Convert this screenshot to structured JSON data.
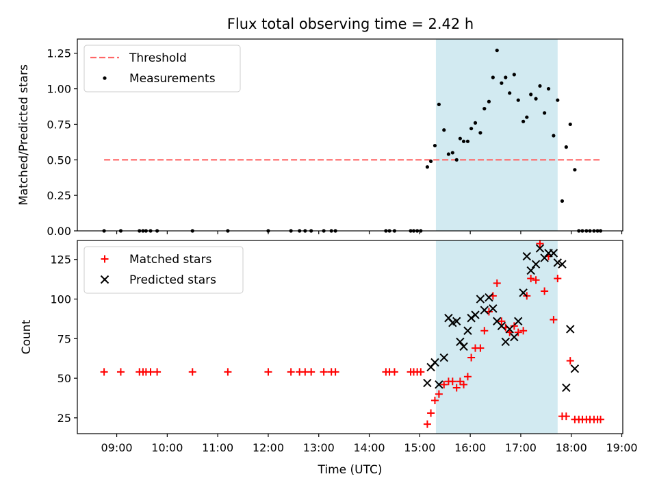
{
  "title": "Flux total observing time = 2.42 h",
  "colors": {
    "threshold": "#ff6666",
    "measurement": "#000000",
    "matched": "#ff0000",
    "predicted": "#000000",
    "highlight": "#add8e6"
  },
  "chart_data": [
    {
      "type": "scatter",
      "ylabel": "Matched/Predicted stars",
      "xlabel": "",
      "ylim": [
        0,
        1.35
      ],
      "xlim_hours": [
        8.22,
        19.02
      ],
      "yticks": [
        "0.00",
        "0.25",
        "0.50",
        "0.75",
        "1.00",
        "1.25"
      ],
      "highlight_span": {
        "start": 15.32,
        "end": 17.73
      },
      "legend": [
        "Threshold",
        "Measurements"
      ],
      "legend_position": "top-left",
      "threshold": {
        "name": "Threshold",
        "y": 0.5,
        "x": [
          8.75,
          18.6
        ]
      },
      "series": [
        {
          "name": "Measurements",
          "marker": "dot",
          "points": [
            [
              8.75,
              0
            ],
            [
              9.08,
              0
            ],
            [
              9.45,
              0
            ],
            [
              9.52,
              0
            ],
            [
              9.58,
              0
            ],
            [
              9.67,
              0
            ],
            [
              9.8,
              0
            ],
            [
              10.5,
              0
            ],
            [
              11.2,
              0
            ],
            [
              12.0,
              0
            ],
            [
              12.45,
              0
            ],
            [
              12.62,
              0
            ],
            [
              12.73,
              0
            ],
            [
              12.85,
              0
            ],
            [
              13.1,
              0
            ],
            [
              13.25,
              0
            ],
            [
              13.33,
              0
            ],
            [
              14.33,
              0
            ],
            [
              14.4,
              0
            ],
            [
              14.5,
              0
            ],
            [
              14.82,
              0
            ],
            [
              14.88,
              0
            ],
            [
              14.95,
              0
            ],
            [
              15.02,
              0
            ],
            [
              15.15,
              0.45
            ],
            [
              15.22,
              0.49
            ],
            [
              15.3,
              0.6
            ],
            [
              15.38,
              0.89
            ],
            [
              15.48,
              0.71
            ],
            [
              15.57,
              0.54
            ],
            [
              15.65,
              0.55
            ],
            [
              15.73,
              0.5
            ],
            [
              15.8,
              0.65
            ],
            [
              15.87,
              0.63
            ],
            [
              15.95,
              0.63
            ],
            [
              16.02,
              0.72
            ],
            [
              16.1,
              0.76
            ],
            [
              16.2,
              0.69
            ],
            [
              16.28,
              0.86
            ],
            [
              16.37,
              0.91
            ],
            [
              16.45,
              1.08
            ],
            [
              16.53,
              1.27
            ],
            [
              16.62,
              1.04
            ],
            [
              16.7,
              1.08
            ],
            [
              16.78,
              0.97
            ],
            [
              16.87,
              1.1
            ],
            [
              16.95,
              0.92
            ],
            [
              17.05,
              0.77
            ],
            [
              17.12,
              0.8
            ],
            [
              17.2,
              0.96
            ],
            [
              17.3,
              0.93
            ],
            [
              17.38,
              1.02
            ],
            [
              17.47,
              0.83
            ],
            [
              17.55,
              1.0
            ],
            [
              17.65,
              0.67
            ],
            [
              17.73,
              0.92
            ],
            [
              17.82,
              0.21
            ],
            [
              17.9,
              0.59
            ],
            [
              17.98,
              0.75
            ],
            [
              18.07,
              0.43
            ],
            [
              18.15,
              0
            ],
            [
              18.22,
              0
            ],
            [
              18.3,
              0
            ],
            [
              18.37,
              0
            ],
            [
              18.45,
              0
            ],
            [
              18.52,
              0
            ],
            [
              18.58,
              0
            ]
          ]
        }
      ]
    },
    {
      "type": "scatter",
      "ylabel": "Count",
      "xlabel": "Time (UTC)",
      "ylim": [
        15,
        137
      ],
      "xlim_hours": [
        8.22,
        19.02
      ],
      "yticks": [
        "25",
        "50",
        "75",
        "100",
        "125"
      ],
      "xticks": [
        "09:00",
        "10:00",
        "11:00",
        "12:00",
        "13:00",
        "14:00",
        "15:00",
        "16:00",
        "17:00",
        "18:00",
        "19:00"
      ],
      "highlight_span": {
        "start": 15.32,
        "end": 17.73
      },
      "legend": [
        "Matched stars",
        "Predicted stars"
      ],
      "legend_position": "top-left",
      "series": [
        {
          "name": "Matched stars",
          "marker": "plus",
          "points": [
            [
              8.75,
              54
            ],
            [
              9.08,
              54
            ],
            [
              9.45,
              54
            ],
            [
              9.52,
              54
            ],
            [
              9.58,
              54
            ],
            [
              9.67,
              54
            ],
            [
              9.8,
              54
            ],
            [
              10.5,
              54
            ],
            [
              11.2,
              54
            ],
            [
              12.0,
              54
            ],
            [
              12.45,
              54
            ],
            [
              12.62,
              54
            ],
            [
              12.73,
              54
            ],
            [
              12.85,
              54
            ],
            [
              13.1,
              54
            ],
            [
              13.25,
              54
            ],
            [
              13.33,
              54
            ],
            [
              14.33,
              54
            ],
            [
              14.4,
              54
            ],
            [
              14.5,
              54
            ],
            [
              14.82,
              54
            ],
            [
              14.88,
              54
            ],
            [
              14.95,
              54
            ],
            [
              15.02,
              54
            ],
            [
              15.15,
              21
            ],
            [
              15.22,
              28
            ],
            [
              15.3,
              36
            ],
            [
              15.38,
              40
            ],
            [
              15.48,
              46
            ],
            [
              15.57,
              48
            ],
            [
              15.65,
              48
            ],
            [
              15.73,
              44
            ],
            [
              15.8,
              48
            ],
            [
              15.87,
              46
            ],
            [
              15.95,
              51
            ],
            [
              16.02,
              63
            ],
            [
              16.1,
              69
            ],
            [
              16.2,
              69
            ],
            [
              16.28,
              80
            ],
            [
              16.37,
              92
            ],
            [
              16.45,
              102
            ],
            [
              16.53,
              110
            ],
            [
              16.62,
              86
            ],
            [
              16.7,
              82
            ],
            [
              16.78,
              79
            ],
            [
              16.87,
              83
            ],
            [
              16.95,
              79
            ],
            [
              17.05,
              80
            ],
            [
              17.12,
              102
            ],
            [
              17.2,
              113
            ],
            [
              17.3,
              112
            ],
            [
              17.38,
              135
            ],
            [
              17.47,
              105
            ],
            [
              17.55,
              127
            ],
            [
              17.65,
              87
            ],
            [
              17.73,
              113
            ],
            [
              17.82,
              26
            ],
            [
              17.9,
              26
            ],
            [
              17.98,
              61
            ],
            [
              18.07,
              24
            ],
            [
              18.15,
              24
            ],
            [
              18.22,
              24
            ],
            [
              18.3,
              24
            ],
            [
              18.37,
              24
            ],
            [
              18.45,
              24
            ],
            [
              18.52,
              24
            ],
            [
              18.58,
              24
            ]
          ]
        },
        {
          "name": "Predicted stars",
          "marker": "cross",
          "points": [
            [
              15.15,
              47
            ],
            [
              15.22,
              57
            ],
            [
              15.3,
              60
            ],
            [
              15.38,
              46
            ],
            [
              15.48,
              63
            ],
            [
              15.57,
              88
            ],
            [
              15.65,
              85
            ],
            [
              15.73,
              86
            ],
            [
              15.8,
              73
            ],
            [
              15.87,
              70
            ],
            [
              15.95,
              80
            ],
            [
              16.02,
              88
            ],
            [
              16.1,
              90
            ],
            [
              16.2,
              100
            ],
            [
              16.28,
              93
            ],
            [
              16.37,
              101
            ],
            [
              16.45,
              94
            ],
            [
              16.53,
              86
            ],
            [
              16.62,
              83
            ],
            [
              16.7,
              73
            ],
            [
              16.78,
              81
            ],
            [
              16.87,
              76
            ],
            [
              16.95,
              86
            ],
            [
              17.05,
              104
            ],
            [
              17.12,
              127
            ],
            [
              17.2,
              118
            ],
            [
              17.3,
              122
            ],
            [
              17.38,
              132
            ],
            [
              17.47,
              126
            ],
            [
              17.55,
              129
            ],
            [
              17.65,
              129
            ],
            [
              17.73,
              123
            ],
            [
              17.82,
              122
            ],
            [
              17.9,
              44
            ],
            [
              17.98,
              81
            ],
            [
              18.07,
              56
            ]
          ]
        }
      ]
    }
  ]
}
